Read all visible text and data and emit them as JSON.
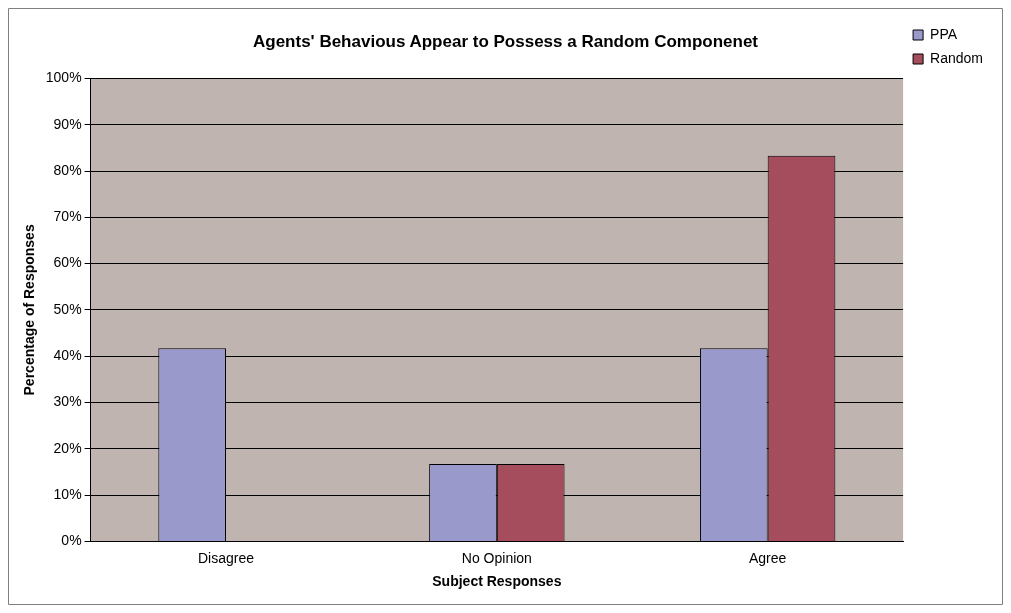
{
  "chart_data": {
    "type": "bar",
    "title": "Agents' Behavious Appear to Possess a Random Componenet",
    "xlabel": "Subject Responses",
    "ylabel": "Percentage of Responses",
    "categories": [
      "Disagree",
      "No Opinion",
      "Agree"
    ],
    "series": [
      {
        "name": "PPA",
        "color": "#9999cc",
        "values": [
          41.7,
          16.7,
          41.7
        ]
      },
      {
        "name": "Random",
        "color": "#a64d5d",
        "values": [
          0,
          16.7,
          83.3
        ]
      }
    ],
    "ylim": [
      0,
      100
    ],
    "yticks": [
      {
        "value": 0,
        "label": "0%"
      },
      {
        "value": 10,
        "label": "10%"
      },
      {
        "value": 20,
        "label": "20%"
      },
      {
        "value": 30,
        "label": "30%"
      },
      {
        "value": 40,
        "label": "40%"
      },
      {
        "value": 50,
        "label": "50%"
      },
      {
        "value": 60,
        "label": "60%"
      },
      {
        "value": 70,
        "label": "70%"
      },
      {
        "value": 80,
        "label": "80%"
      },
      {
        "value": 90,
        "label": "90%"
      },
      {
        "value": 100,
        "label": "100%"
      }
    ],
    "grid": "y",
    "legend": "right"
  }
}
